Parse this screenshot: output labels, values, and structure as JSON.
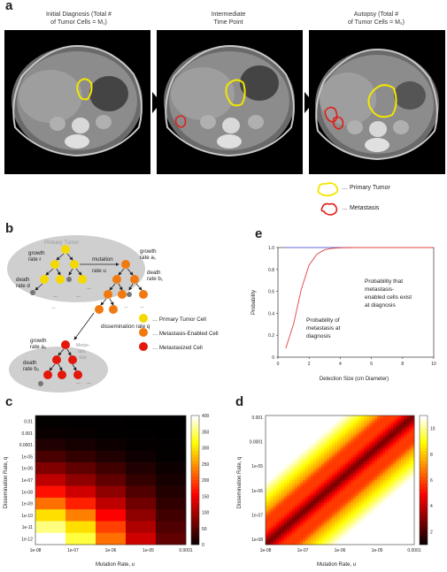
{
  "panel_labels": {
    "a": "a",
    "b": "b",
    "c": "c",
    "d": "d",
    "e": "e"
  },
  "panel_a": {
    "captions": [
      {
        "line1": "Initial Diagnosis (Total #",
        "line2": "of Tumor Cells = M₁)"
      },
      {
        "line1": "Intermediate",
        "line2": "Time Point"
      },
      {
        "line1": "Autopsy (Total #",
        "line2": "of Tumor Cells = M₂)"
      }
    ],
    "legend": {
      "primary": "… Primary Tumor",
      "metastasis": "… Metastasis"
    },
    "colors": {
      "primary": "#f2e600",
      "metastasis": "#e0201a"
    }
  },
  "panel_b": {
    "primary_site": "Primary Tumor",
    "metastatic_site_line1": "Metas-",
    "metastatic_site_line2": "tatic",
    "metastatic_site_line3": "Site",
    "labels": {
      "growth_r1": "growth",
      "growth_r2": "rate r",
      "death_d1": "death",
      "death_d2": "rate d",
      "mutation1": "mutation",
      "mutation2": "rate u",
      "growth_a1_1": "growth",
      "growth_a1_2": "rate a₁",
      "death_b1_1": "death",
      "death_b1_2": "rate b₁",
      "dissemination": "dissemination rate q",
      "growth_a2_1": "growth",
      "growth_a2_2": "rate a₂",
      "death_b2_1": "death",
      "death_b2_2": "rate b₂"
    },
    "legend": [
      {
        "label": "… Primary Tumor Cell",
        "color": "#f5d800"
      },
      {
        "label": "… Metastasis-Enabled Cell",
        "color": "#f07a10"
      },
      {
        "label": "… Metastasized Cell",
        "color": "#e3170a"
      }
    ]
  },
  "chart_data": [
    {
      "type": "line",
      "panel": "e",
      "xlabel": "Detection Size (cm Diameter)",
      "ylabel": "Probability",
      "xlim": [
        0,
        10
      ],
      "ylim": [
        0,
        1.0
      ],
      "x_ticks": [
        "0",
        "2",
        "4",
        "6",
        "8",
        "10"
      ],
      "y_ticks": [
        "0",
        "0.2",
        "0.4",
        "0.6",
        "0.8",
        "1.0"
      ],
      "series": [
        {
          "name": "Probability that metastasis-enabled cells exist at diagnosis",
          "color": "#6666dd",
          "x": [
            0.5,
            1,
            2,
            4,
            6,
            8,
            10
          ],
          "y": [
            1,
            1,
            1,
            1,
            1,
            1,
            1
          ]
        },
        {
          "name": "Probability of metastasis at diagnosis",
          "color": "#e04040",
          "x": [
            0.5,
            1,
            1.5,
            2,
            2.5,
            3,
            3.5,
            4,
            5,
            6,
            8,
            10
          ],
          "y": [
            0.08,
            0.3,
            0.62,
            0.84,
            0.94,
            0.98,
            0.993,
            0.998,
            1,
            1,
            1,
            1
          ]
        }
      ],
      "annotations": [
        {
          "lines": [
            "Probability that",
            "metastasis-",
            "enabled cells exist",
            "at diagnosis"
          ]
        },
        {
          "lines": [
            "Probability of",
            "metastasis at",
            "diagnosis"
          ]
        }
      ]
    },
    {
      "type": "heatmap",
      "panel": "c",
      "xlabel": "Mutation Rate, u",
      "ylabel": "Dissemination Rate, q",
      "x_ticks": [
        "1e-08",
        "1e-07",
        "1e-06",
        "1e-05",
        "0.0001"
      ],
      "y_ticks": [
        "0.01",
        "0.001",
        "0.0001",
        "1e-05",
        "1e-06",
        "1e-07",
        "1e-08",
        "1e-09",
        "1e-10",
        "1e-11",
        "1e-12"
      ],
      "colorbar": {
        "ticks": [
          "400",
          "350",
          "300",
          "250",
          "200",
          "150",
          "100",
          "50",
          "0"
        ],
        "range": [
          0,
          400
        ]
      },
      "rows": 11,
      "cols": 5,
      "values": [
        [
          2,
          1,
          1,
          0,
          0
        ],
        [
          6,
          4,
          2,
          1,
          0
        ],
        [
          20,
          14,
          8,
          3,
          1
        ],
        [
          45,
          32,
          20,
          9,
          3
        ],
        [
          80,
          60,
          40,
          20,
          8
        ],
        [
          120,
          90,
          60,
          32,
          14
        ],
        [
          170,
          130,
          90,
          50,
          22
        ],
        [
          230,
          180,
          120,
          70,
          30
        ],
        [
          300,
          240,
          160,
          90,
          40
        ],
        [
          360,
          300,
          200,
          110,
          50
        ],
        [
          400,
          340,
          230,
          130,
          60
        ]
      ]
    },
    {
      "type": "heatmap",
      "panel": "d",
      "xlabel": "Mutation Rate, u",
      "ylabel": "Dissemination Rate, q",
      "x_ticks": [
        "1e-08",
        "1e-07",
        "1e-06",
        "1e-05",
        "0.0001"
      ],
      "y_ticks": [
        "0.001",
        "0.0001",
        "1e-05",
        "1e-06",
        "1e-07",
        "1e-08"
      ],
      "colorbar": {
        "ticks": [
          "10",
          "8",
          "6",
          "4",
          "2"
        ],
        "range": [
          1,
          11
        ]
      },
      "description_values": "diagonal band of low values running from top-left to bottom-right, high values at upper-right and lower-left corners"
    }
  ]
}
